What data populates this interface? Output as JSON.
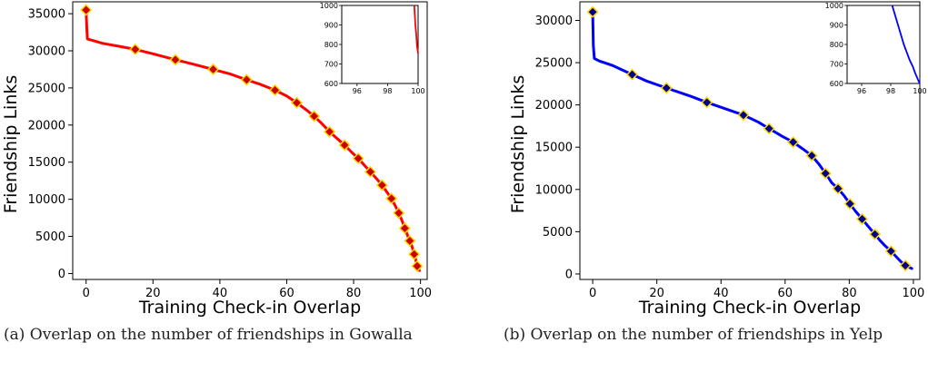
{
  "chart_data": [
    {
      "type": "line",
      "xlabel": "Training Check-in Overlap",
      "ylabel": "Friendship Links",
      "xlim": [
        -4,
        102
      ],
      "ylim": [
        -800,
        36600
      ],
      "xticks": [
        0,
        20,
        40,
        60,
        80,
        100
      ],
      "yticks": [
        0,
        5000,
        10000,
        15000,
        20000,
        25000,
        30000,
        35000
      ],
      "line_color": "#ff0000",
      "marker_color": "#cc0000",
      "marker_edge": "#ffd700",
      "caption": "(a) Overlap on the number of friendships in Gowalla",
      "series": [
        {
          "x": [
            0,
            0.2,
            0.4,
            5,
            10,
            14.7,
            20,
            26.7,
            32,
            38,
            43,
            48,
            52,
            56.5,
            60,
            63,
            66,
            68.2,
            70.5,
            72.8,
            75,
            77.3,
            79.5,
            81.4,
            83.2,
            85,
            86.8,
            88.5,
            90,
            91.3,
            92.5,
            93.5,
            94.5,
            95.3,
            96,
            96.8,
            97.5,
            98.1,
            98.6,
            99,
            99.4,
            99.7
          ],
          "y": [
            35500,
            33000,
            31600,
            31000,
            30600,
            30200,
            29600,
            28800,
            28200,
            27500,
            26900,
            26100,
            25500,
            24700,
            23900,
            23000,
            22000,
            21200,
            20200,
            19100,
            18200,
            17300,
            16300,
            15500,
            14600,
            13700,
            12800,
            11900,
            10950,
            10100,
            9100,
            8150,
            7100,
            6100,
            5300,
            4400,
            3600,
            2600,
            1800,
            1000,
            600,
            400
          ]
        }
      ],
      "markers": {
        "x": [
          0,
          14.7,
          26.7,
          38,
          48,
          56.5,
          63,
          68.2,
          72.8,
          77.3,
          81.4,
          85,
          88.5,
          91.3,
          93.5,
          95.3,
          96.8,
          98.1,
          99
        ],
        "y": [
          35500,
          30200,
          28800,
          27500,
          26100,
          24700,
          23000,
          21200,
          19100,
          17300,
          15500,
          13700,
          11900,
          10100,
          8150,
          6100,
          4400,
          2600,
          1000
        ]
      },
      "inset": {
        "xlim": [
          95,
          100
        ],
        "ylim": [
          600,
          1000
        ],
        "xticks": [
          96,
          98,
          100
        ],
        "yticks": [
          600,
          700,
          800,
          900,
          1000
        ],
        "x": [
          99.75,
          99.82,
          99.88,
          99.93,
          99.97,
          100
        ],
        "y": [
          1000,
          900,
          850,
          790,
          770,
          755
        ]
      }
    },
    {
      "type": "line",
      "xlabel": "Training Check-in Overlap",
      "ylabel": "Friendship Links",
      "xlim": [
        -4,
        102
      ],
      "ylim": [
        -650,
        32200
      ],
      "xticks": [
        0,
        20,
        40,
        60,
        80,
        100
      ],
      "yticks": [
        0,
        5000,
        10000,
        15000,
        20000,
        25000,
        30000
      ],
      "line_color": "#0000ff",
      "marker_color": "#00008b",
      "marker_edge": "#ffd700",
      "caption": "(b) Overlap on the number of friendships in Yelp",
      "series": [
        {
          "x": [
            0,
            0.2,
            0.5,
            2,
            6,
            12.3,
            17,
            23,
            30,
            35.6,
            41,
            47,
            51.5,
            55,
            59,
            62.5,
            65.5,
            68.3,
            70.5,
            72.6,
            74.5,
            76.5,
            78.5,
            80.2,
            82,
            84,
            86,
            88,
            89.5,
            91,
            93,
            94.5,
            96,
            97.5,
            98.5,
            99.5
          ],
          "y": [
            31000,
            27000,
            25500,
            25200,
            24700,
            23600,
            22800,
            22000,
            21100,
            20300,
            19600,
            18800,
            18000,
            17200,
            16300,
            15600,
            14800,
            14000,
            13000,
            11900,
            10800,
            10100,
            9200,
            8300,
            7400,
            6500,
            5600,
            4700,
            4000,
            3400,
            2700,
            2100,
            1500,
            1000,
            800,
            650
          ]
        }
      ],
      "markers": {
        "x": [
          0,
          12.3,
          23,
          35.6,
          47,
          55,
          62.5,
          68.3,
          72.6,
          76.5,
          80.2,
          84,
          88,
          93,
          97.5
        ],
        "y": [
          31000,
          23600,
          22000,
          20300,
          18800,
          17200,
          15600,
          14000,
          11900,
          10100,
          8300,
          6500,
          4700,
          2700,
          1000
        ]
      },
      "inset": {
        "xlim": [
          95,
          100
        ],
        "ylim": [
          600,
          1000
        ],
        "xticks": [
          96,
          98,
          100
        ],
        "yticks": [
          600,
          700,
          800,
          900,
          1000
        ],
        "x": [
          98.1,
          98.3,
          98.5,
          98.7,
          98.9,
          99.1,
          99.3,
          99.5,
          99.7,
          99.9,
          100
        ],
        "y": [
          1000,
          950,
          900,
          850,
          800,
          760,
          720,
          690,
          650,
          615,
          600
        ]
      }
    }
  ]
}
